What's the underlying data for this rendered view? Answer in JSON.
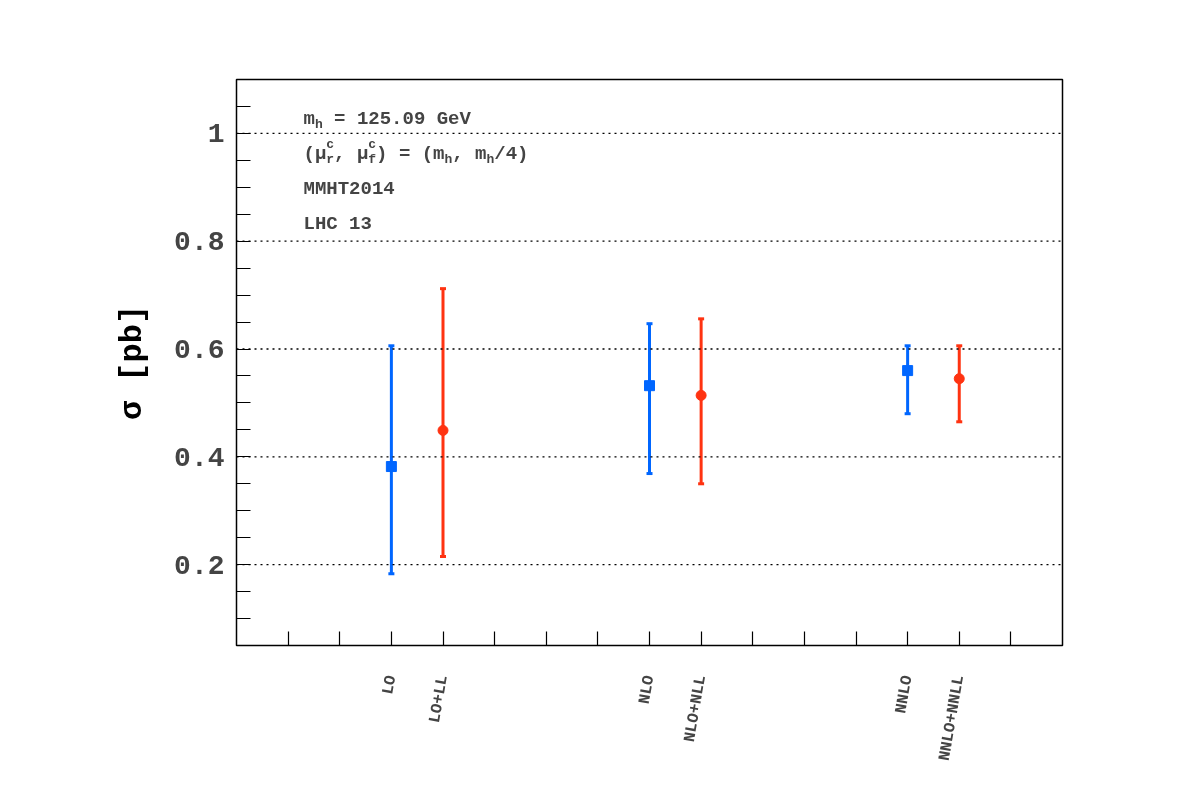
{
  "chart_data": {
    "type": "scatter",
    "ylabel": "σ [pb]",
    "categories": [
      null,
      null,
      "LO",
      "LO+LL",
      null,
      null,
      null,
      "NLO",
      "NLO+NLL",
      null,
      null,
      null,
      "NNLO",
      "NNLO+NNLL",
      null
    ],
    "ylim": [
      0.05,
      1.1
    ],
    "yticks": [
      {
        "value": 0.1,
        "label": null
      },
      {
        "value": 0.15,
        "label": null
      },
      {
        "value": 0.2,
        "label": "0.2"
      },
      {
        "value": 0.25,
        "label": null
      },
      {
        "value": 0.3,
        "label": null
      },
      {
        "value": 0.35,
        "label": null
      },
      {
        "value": 0.4,
        "label": "0.4"
      },
      {
        "value": 0.45,
        "label": null
      },
      {
        "value": 0.5,
        "label": null
      },
      {
        "value": 0.55,
        "label": null
      },
      {
        "value": 0.6,
        "label": "0.6"
      },
      {
        "value": 0.65,
        "label": null
      },
      {
        "value": 0.7,
        "label": null
      },
      {
        "value": 0.75,
        "label": null
      },
      {
        "value": 0.8,
        "label": "0.8"
      },
      {
        "value": 0.85,
        "label": null
      },
      {
        "value": 0.9,
        "label": null
      },
      {
        "value": 0.95,
        "label": null
      },
      {
        "value": 1,
        "label": "1"
      },
      {
        "value": 1.05,
        "label": null
      }
    ],
    "grid": "y",
    "series": [
      {
        "color": "#0066ff",
        "marker": "square",
        "values": [
          null,
          null,
          0.382,
          null,
          null,
          null,
          null,
          0.532,
          null,
          null,
          null,
          null,
          0.56,
          null,
          null
        ],
        "errors": [
          null,
          null,
          [
            0.183,
            0.606
          ],
          null,
          null,
          null,
          null,
          [
            0.369,
            0.647
          ],
          null,
          null,
          null,
          null,
          [
            0.48,
            0.606
          ],
          null,
          null
        ]
      },
      {
        "color": "#ff3311",
        "marker": "circle",
        "values": [
          null,
          null,
          null,
          0.449,
          null,
          null,
          null,
          null,
          0.514,
          null,
          null,
          null,
          null,
          0.545,
          null
        ],
        "errors": [
          null,
          null,
          null,
          [
            0.215,
            0.712
          ],
          null,
          null,
          null,
          null,
          [
            0.35,
            0.656
          ],
          null,
          null,
          null,
          null,
          [
            0.465,
            0.606
          ],
          null
        ]
      }
    ],
    "annotations": [
      "m$_{h}$ = 125.09 GeV",
      "(μ$^{c}$$_{r}$, μ$^{c}$$_{f}$) = (m$_{h}$, m$_{h}$/4)",
      "MMHT2014",
      "LHC 13"
    ]
  }
}
